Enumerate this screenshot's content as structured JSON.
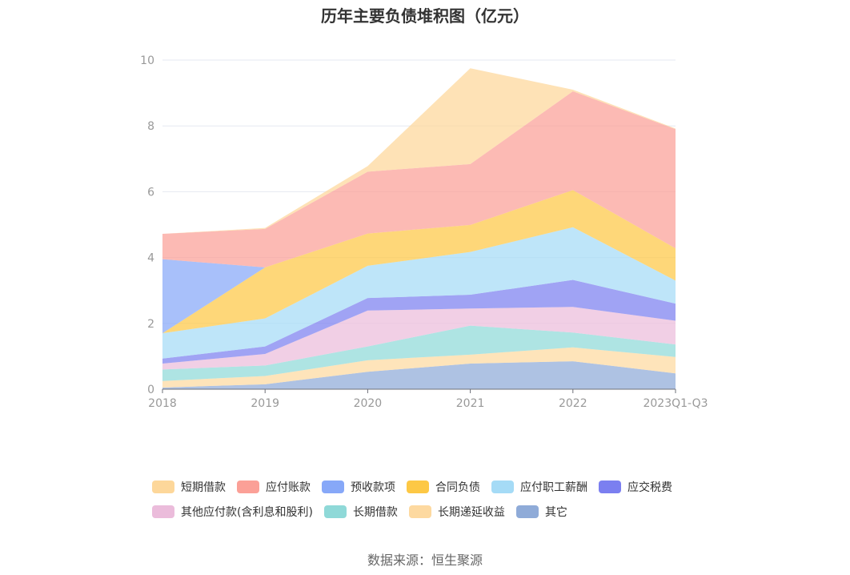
{
  "chart_data": {
    "type": "area",
    "stacked": true,
    "title": "历年主要负债堆积图（亿元）",
    "categories": [
      "2018",
      "2019",
      "2020",
      "2021",
      "2022",
      "2023Q1-Q3"
    ],
    "ylim": [
      0,
      10
    ],
    "yticks": [
      0,
      2,
      4,
      6,
      8,
      10
    ],
    "grid": true,
    "legend_position": "bottom",
    "series": [
      {
        "name": "其它",
        "color": "#8fabd8",
        "values": [
          0.05,
          0.15,
          0.53,
          0.78,
          0.85,
          0.48
        ]
      },
      {
        "name": "长期递延收益",
        "color": "#fdd9a0",
        "values": [
          0.2,
          0.25,
          0.35,
          0.27,
          0.42,
          0.5
        ]
      },
      {
        "name": "长期借款",
        "color": "#8fd9d8",
        "values": [
          0.35,
          0.32,
          0.42,
          0.88,
          0.45,
          0.38
        ]
      },
      {
        "name": "其他应付款(含利息和股利)",
        "color": "#ebbcdb",
        "values": [
          0.18,
          0.35,
          1.09,
          0.52,
          0.78,
          0.72
        ]
      },
      {
        "name": "应交税费",
        "color": "#7b7ff0",
        "values": [
          0.15,
          0.23,
          0.38,
          0.42,
          0.82,
          0.52
        ]
      },
      {
        "name": "应付职工薪酬",
        "color": "#a5dbf6",
        "values": [
          0.77,
          0.85,
          0.98,
          1.3,
          1.6,
          0.7
        ]
      },
      {
        "name": "合同负债",
        "color": "#fdc845",
        "values": [
          0,
          1.55,
          0.98,
          0.82,
          1.13,
          0.98
        ]
      },
      {
        "name": "预收款项",
        "color": "#87a8f8",
        "values": [
          2.25,
          0,
          0,
          0,
          0,
          0
        ]
      },
      {
        "name": "应付账款",
        "color": "#fba097",
        "values": [
          0.77,
          1.17,
          1.88,
          1.85,
          3.0,
          3.62
        ]
      },
      {
        "name": "短期借款",
        "color": "#fdd79a",
        "values": [
          0,
          0.03,
          0.17,
          2.91,
          0.05,
          0.02
        ]
      }
    ]
  },
  "legend": {
    "row1": [
      {
        "name": "短期借款",
        "color": "#fdd79a"
      },
      {
        "name": "应付账款",
        "color": "#fba097"
      },
      {
        "name": "预收款项",
        "color": "#87a8f8"
      },
      {
        "name": "合同负债",
        "color": "#fdc845"
      },
      {
        "name": "应付职工薪酬",
        "color": "#a5dbf6"
      },
      {
        "name": "应交税费",
        "color": "#7b7ff0"
      }
    ],
    "row2": [
      {
        "name": "其他应付款(含利息和股利)",
        "color": "#ebbcdb"
      },
      {
        "name": "长期借款",
        "color": "#8fd9d8"
      },
      {
        "name": "长期递延收益",
        "color": "#fdd9a0"
      },
      {
        "name": "其它",
        "color": "#8fabd8"
      }
    ]
  },
  "source": "数据来源：恒生聚源"
}
